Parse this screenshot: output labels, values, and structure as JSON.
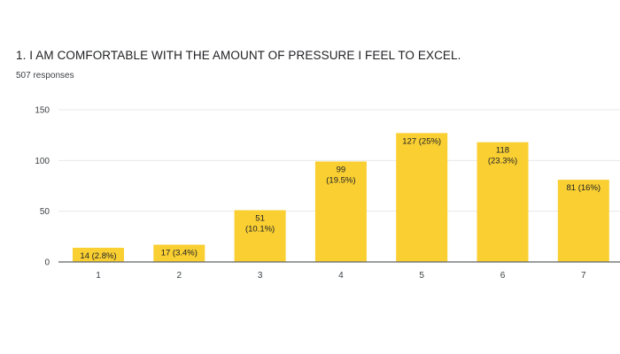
{
  "header": {
    "title": "1. I AM COMFORTABLE WITH THE AMOUNT OF PRESSURE I FEEL TO EXCEL.",
    "subtitle": "507 responses"
  },
  "colors": {
    "bar": "#f9cf32",
    "grid": "#e8e8e8",
    "axis": "#5f6368"
  },
  "chart_data": {
    "type": "bar",
    "categories": [
      "1",
      "2",
      "3",
      "4",
      "5",
      "6",
      "7"
    ],
    "values": [
      14,
      17,
      51,
      99,
      127,
      118,
      81
    ],
    "data_labels": [
      [
        "14 (2.8%)"
      ],
      [
        "17 (3.4%)"
      ],
      [
        "51",
        "(10.1%)"
      ],
      [
        "99",
        "(19.5%)"
      ],
      [
        "127 (25%)"
      ],
      [
        "118",
        "(23.3%)"
      ],
      [
        "81 (16%)"
      ]
    ],
    "title": "1. I AM COMFORTABLE WITH THE AMOUNT OF PRESSURE I FEEL TO EXCEL.",
    "subtitle": "507 responses",
    "xlabel": "",
    "ylabel": "",
    "ylim": [
      0,
      150
    ],
    "yticks": [
      0,
      50,
      100,
      150
    ],
    "grid": true,
    "legend": "none"
  }
}
